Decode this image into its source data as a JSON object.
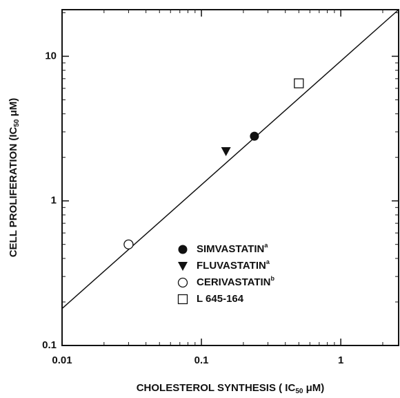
{
  "chart_data": {
    "type": "scatter",
    "x_label": {
      "text": "CHOLESTEROL SYNTHESIS ( IC",
      "sub": "50",
      "after": " μM)"
    },
    "y_label": {
      "text": "CELL PROLIFERATION (IC",
      "sub": "50",
      "after": " μM)"
    },
    "log_x": true,
    "log_y": true,
    "xlim": [
      0.01,
      2.6
    ],
    "ylim": [
      0.1,
      21
    ],
    "xticks": [
      0.01,
      0.1,
      1
    ],
    "yticks": [
      0.1,
      1,
      10
    ],
    "xminor": [
      0.02,
      0.03,
      0.04,
      0.05,
      0.06,
      0.07,
      0.08,
      0.09,
      0.2,
      0.3,
      0.4,
      0.5,
      0.6,
      0.7,
      0.8,
      0.9,
      2
    ],
    "yminor": [
      0.2,
      0.3,
      0.4,
      0.5,
      0.6,
      0.7,
      0.8,
      0.9,
      2,
      3,
      4,
      5,
      6,
      7,
      8,
      9,
      20
    ],
    "fit_line": {
      "x": [
        0.01,
        2.6
      ],
      "values": [
        0.18,
        21
      ]
    },
    "legend": "lower right",
    "series": [
      {
        "name": "SIMVASTATIN",
        "note": "a",
        "marker": "filled-circle",
        "color": "#111",
        "x": [
          0.24
        ],
        "values": [
          2.8
        ]
      },
      {
        "name": "FLUVASTATIN",
        "note": "a",
        "marker": "filled-triangle-down",
        "color": "#111",
        "x": [
          0.15
        ],
        "values": [
          2.2
        ]
      },
      {
        "name": "CERIVASTATIN",
        "note": "b",
        "marker": "open-circle",
        "color": "#111",
        "x": [
          0.03
        ],
        "values": [
          0.5
        ]
      },
      {
        "name": "L 645-164",
        "marker": "open-square",
        "color": "#111",
        "x": [
          0.5
        ],
        "values": [
          6.5
        ]
      }
    ]
  }
}
